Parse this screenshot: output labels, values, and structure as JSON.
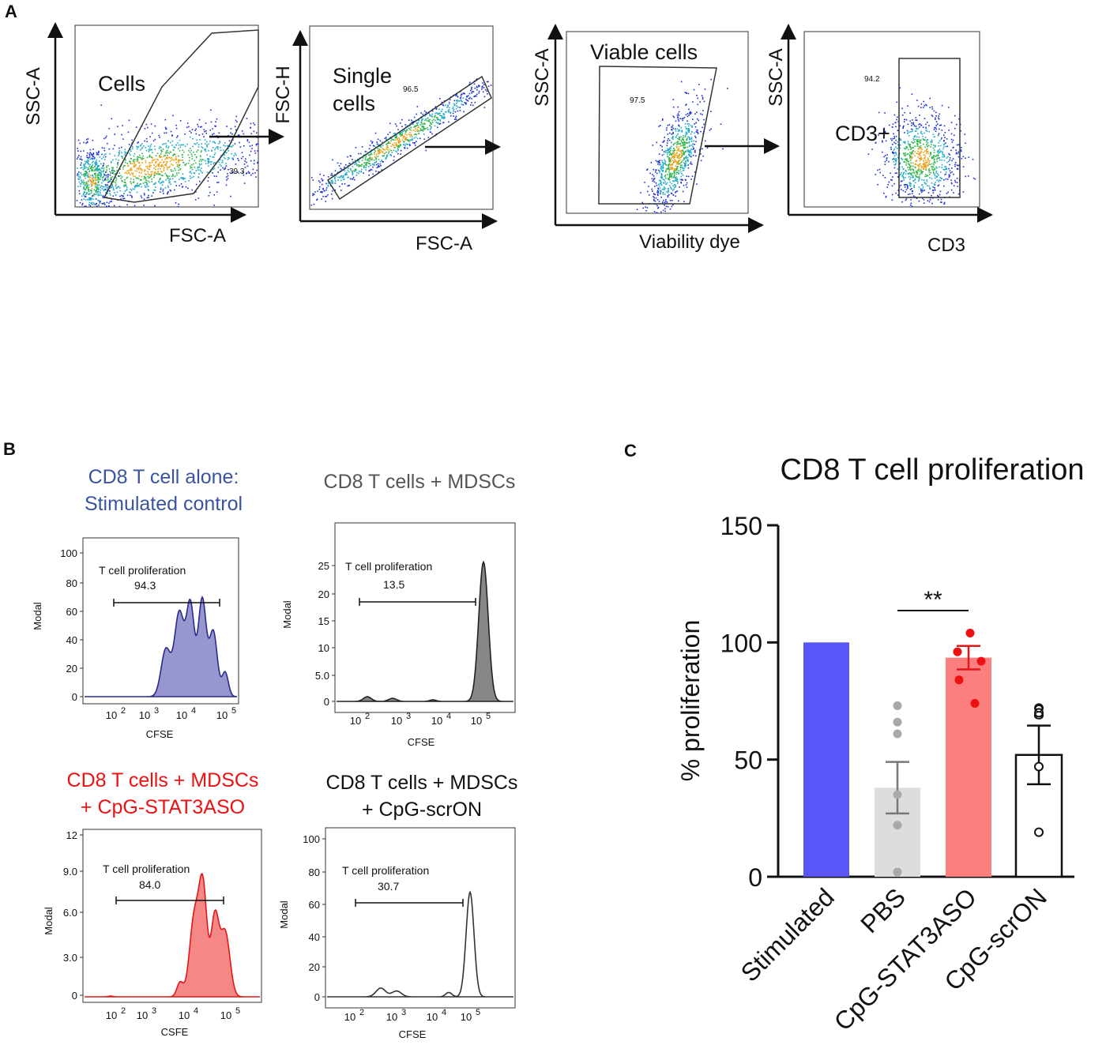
{
  "colors": {
    "stimulated": "#5a55f7",
    "pbs": "#dddddd",
    "pbs_points": "#a9a9a9",
    "stat3aso": "#fc7f7f",
    "stat3aso_points": "#ee1111",
    "scron": "#ffffff",
    "blue_title": "#3a54a0",
    "red_title": "#ee1111",
    "gray_title": "#555555",
    "hist_blue": "#8c8bc9",
    "hist_blue_line": "#2a2a8f",
    "hist_gray": "#7a7a7a",
    "hist_red": "#f47a7a",
    "hist_red_line": "#e01818"
  },
  "panel_a": {
    "label": "A",
    "gates": [
      {
        "xlabel": "FSC-A",
        "ylabel": "SSC-A",
        "gate_name": "Cells",
        "gate_value": "39.3"
      },
      {
        "xlabel": "FSC-A",
        "ylabel": "FSC-H",
        "gate_name_line1": "Single",
        "gate_name_line2": "cells",
        "gate_value": "96.5"
      },
      {
        "xlabel": "Viability dye",
        "ylabel": "SSC-A",
        "gate_name": "Viable  cells",
        "gate_value": "97.5"
      },
      {
        "xlabel": "CD3",
        "ylabel": "SSC-A",
        "gate_name": "CD3+",
        "gate_value": "94.2"
      }
    ]
  },
  "panel_b": {
    "label": "B",
    "histograms": [
      {
        "title_line1": "CD8 T cell alone:",
        "title_line2": "Stimulated control",
        "gate_label": "T cell proliferation",
        "gate_value": "94.3",
        "xlabel": "CFSE",
        "ylabel": "Modal",
        "yticks": [
          "0",
          "20",
          "40",
          "60",
          "80",
          "100"
        ]
      },
      {
        "title_line1": "CD8 T cells + MDSCs",
        "gate_label": "T cell proliferation",
        "gate_value": "13.5",
        "xlabel": "CFSE",
        "ylabel": "Modal",
        "yticks": [
          "0",
          "5.0",
          "10",
          "15",
          "20",
          "25"
        ]
      },
      {
        "title_line1": "CD8 T cells + MDSCs",
        "title_line2": "+ CpG-STAT3ASO",
        "gate_label": "T cell proliferation",
        "gate_value": "84.0",
        "xlabel": "CSFE",
        "ylabel": "Modal",
        "yticks": [
          "0",
          "3.0",
          "6.0",
          "9.0",
          "12"
        ]
      },
      {
        "title_line1": "CD8 T cells + MDSCs",
        "title_line2": "+ CpG-scrON",
        "gate_label": "T cell proliferation",
        "gate_value": "30.7",
        "xlabel": "CFSE",
        "ylabel": "Modal",
        "yticks": [
          "0",
          "20",
          "40",
          "60",
          "80",
          "100"
        ]
      }
    ],
    "x_ticks": [
      {
        "base": "10",
        "exp": "2"
      },
      {
        "base": "10",
        "exp": "3"
      },
      {
        "base": "10",
        "exp": "4"
      },
      {
        "base": "10",
        "exp": "5"
      }
    ]
  },
  "chart_data": {
    "type": "bar",
    "panel_label": "C",
    "title": "CD8 T cell proliferation",
    "ylabel": "% proliferation",
    "xlabel": "",
    "ylim": [
      0,
      150
    ],
    "yticks": [
      0,
      50,
      100,
      150
    ],
    "categories": [
      "Stimulated",
      "PBS",
      "CpG-STAT3ASO",
      "CpG-scrON"
    ],
    "values": [
      100,
      38,
      93.5,
      52
    ],
    "sem": [
      0,
      11,
      5,
      12.5
    ],
    "points": [
      [],
      [
        73,
        66,
        61,
        35,
        22,
        2
      ],
      [
        104,
        96,
        92,
        84,
        74
      ],
      [
        72,
        70,
        47,
        19
      ]
    ],
    "significance": {
      "between": [
        "PBS",
        "CpG-STAT3ASO"
      ],
      "label": "**"
    },
    "scron_annotation": "8"
  }
}
